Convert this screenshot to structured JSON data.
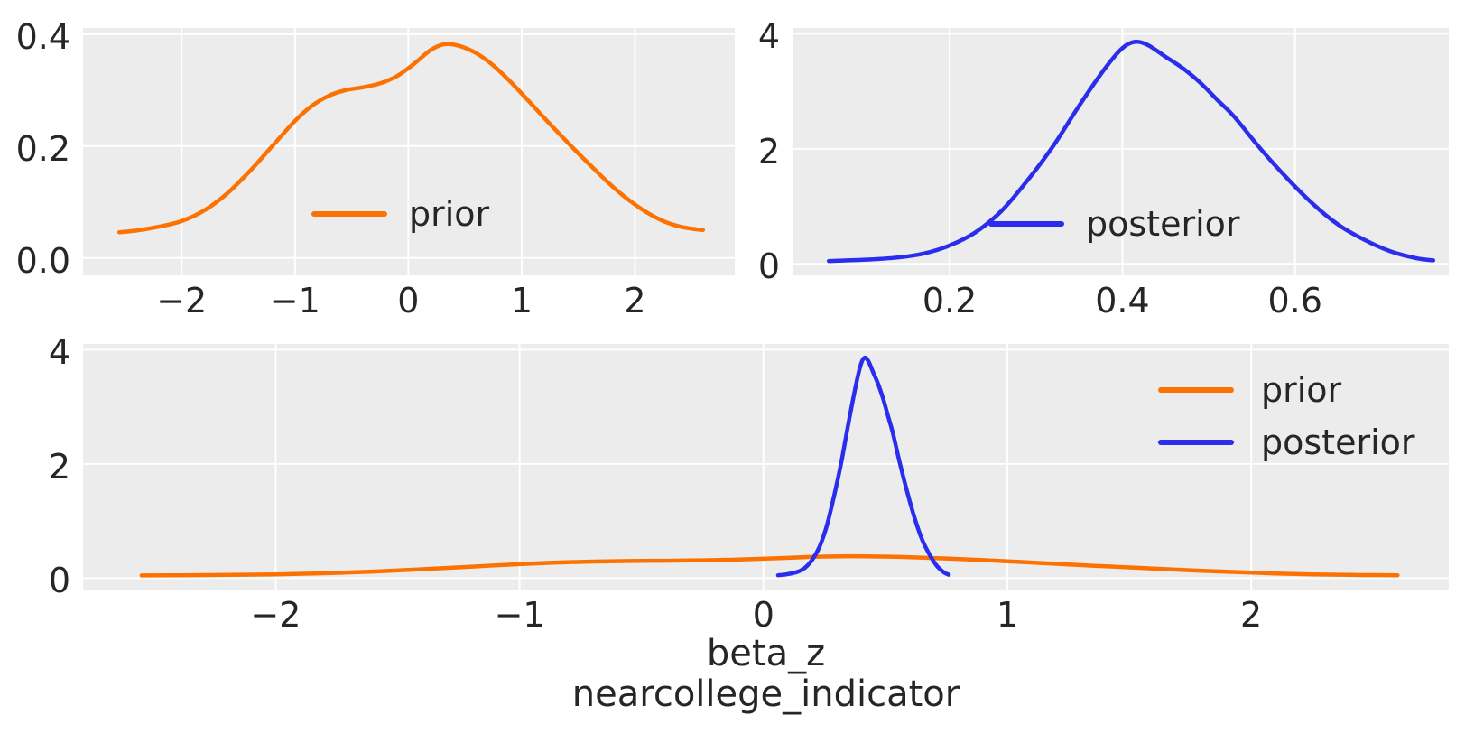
{
  "figure": {
    "background": "#ffffff",
    "panel_background": "#ececec",
    "grid_color": "#ffffff",
    "text_color": "#262626"
  },
  "colors": {
    "prior": "#fc7202",
    "posterior": "#2a2eec"
  },
  "legend": {
    "prior_label": "prior",
    "posterior_label": "posterior"
  },
  "xlabel": {
    "line1": "beta_z",
    "line2": "nearcollege_indicator"
  },
  "chart_data": {
    "type": "line",
    "description": "Kernel density estimates of the prior and posterior distributions for the coefficient beta_z (nearcollege_indicator); top-left: prior alone, top-right: posterior alone, bottom: both on a common scale.",
    "series_defs": {
      "prior": {
        "label": "prior",
        "color": "#fc7202",
        "points": [
          [
            -2.55,
            0.046
          ],
          [
            -2.4,
            0.049
          ],
          [
            -2.2,
            0.056
          ],
          [
            -2.0,
            0.066
          ],
          [
            -1.8,
            0.085
          ],
          [
            -1.6,
            0.115
          ],
          [
            -1.4,
            0.155
          ],
          [
            -1.2,
            0.2
          ],
          [
            -1.0,
            0.245
          ],
          [
            -0.85,
            0.272
          ],
          [
            -0.7,
            0.29
          ],
          [
            -0.55,
            0.3
          ],
          [
            -0.4,
            0.305
          ],
          [
            -0.25,
            0.312
          ],
          [
            -0.1,
            0.325
          ],
          [
            0.05,
            0.347
          ],
          [
            0.2,
            0.372
          ],
          [
            0.32,
            0.382
          ],
          [
            0.45,
            0.379
          ],
          [
            0.6,
            0.366
          ],
          [
            0.75,
            0.344
          ],
          [
            0.9,
            0.315
          ],
          [
            1.05,
            0.283
          ],
          [
            1.2,
            0.25
          ],
          [
            1.35,
            0.218
          ],
          [
            1.5,
            0.187
          ],
          [
            1.65,
            0.157
          ],
          [
            1.8,
            0.128
          ],
          [
            1.95,
            0.103
          ],
          [
            2.1,
            0.082
          ],
          [
            2.25,
            0.066
          ],
          [
            2.4,
            0.056
          ],
          [
            2.55,
            0.051
          ],
          [
            2.6,
            0.05
          ]
        ]
      },
      "posterior": {
        "label": "posterior",
        "color": "#2a2eec",
        "points": [
          [
            0.06,
            0.05
          ],
          [
            0.1,
            0.07
          ],
          [
            0.14,
            0.11
          ],
          [
            0.17,
            0.18
          ],
          [
            0.2,
            0.32
          ],
          [
            0.23,
            0.55
          ],
          [
            0.26,
            0.92
          ],
          [
            0.29,
            1.45
          ],
          [
            0.32,
            2.05
          ],
          [
            0.35,
            2.75
          ],
          [
            0.38,
            3.4
          ],
          [
            0.4,
            3.75
          ],
          [
            0.415,
            3.86
          ],
          [
            0.43,
            3.8
          ],
          [
            0.45,
            3.6
          ],
          [
            0.47,
            3.4
          ],
          [
            0.49,
            3.15
          ],
          [
            0.51,
            2.85
          ],
          [
            0.53,
            2.55
          ],
          [
            0.56,
            2.0
          ],
          [
            0.59,
            1.5
          ],
          [
            0.62,
            1.05
          ],
          [
            0.65,
            0.68
          ],
          [
            0.68,
            0.42
          ],
          [
            0.71,
            0.22
          ],
          [
            0.74,
            0.1
          ],
          [
            0.76,
            0.06
          ]
        ]
      }
    },
    "panels": [
      {
        "id": "prior-marginal",
        "series": [
          "prior"
        ],
        "xlim": [
          -2.87,
          2.88
        ],
        "ylim": [
          -0.031,
          0.411
        ],
        "xticks": [
          {
            "v": -2,
            "label": "−2"
          },
          {
            "v": -1,
            "label": "−1"
          },
          {
            "v": 0,
            "label": "0"
          },
          {
            "v": 1,
            "label": "1"
          },
          {
            "v": 2,
            "label": "2"
          }
        ],
        "yticks": [
          {
            "v": 0,
            "label": "0.0"
          },
          {
            "v": 0.2,
            "label": "0.2"
          },
          {
            "v": 0.4,
            "label": "0.4"
          }
        ],
        "grid": true,
        "legend_entries": [
          "prior"
        ],
        "legend_position": "lower center"
      },
      {
        "id": "posterior-marginal",
        "series": [
          "posterior"
        ],
        "xlim": [
          0.018,
          0.778
        ],
        "ylim": [
          -0.2,
          4.1
        ],
        "xticks": [
          {
            "v": 0.2,
            "label": "0.2"
          },
          {
            "v": 0.4,
            "label": "0.4"
          },
          {
            "v": 0.6,
            "label": "0.6"
          }
        ],
        "yticks": [
          {
            "v": 0,
            "label": "0"
          },
          {
            "v": 2,
            "label": "2"
          },
          {
            "v": 4,
            "label": "4"
          }
        ],
        "grid": true,
        "legend_entries": [
          "posterior"
        ],
        "legend_position": "lower center"
      },
      {
        "id": "prior-posterior-comparison",
        "series": [
          "prior",
          "posterior"
        ],
        "xlim": [
          -2.79,
          2.81
        ],
        "ylim": [
          -0.2,
          4.1
        ],
        "xticks": [
          {
            "v": -2,
            "label": "−2"
          },
          {
            "v": -1,
            "label": "−1"
          },
          {
            "v": 0,
            "label": "0"
          },
          {
            "v": 1,
            "label": "1"
          },
          {
            "v": 2,
            "label": "2"
          }
        ],
        "yticks": [
          {
            "v": 0,
            "label": "0"
          },
          {
            "v": 2,
            "label": "2"
          },
          {
            "v": 4,
            "label": "4"
          }
        ],
        "grid": true,
        "legend_entries": [
          "prior",
          "posterior"
        ],
        "legend_position": "upper right",
        "xlabel": "beta_z\nnearcollege_indicator"
      }
    ]
  }
}
